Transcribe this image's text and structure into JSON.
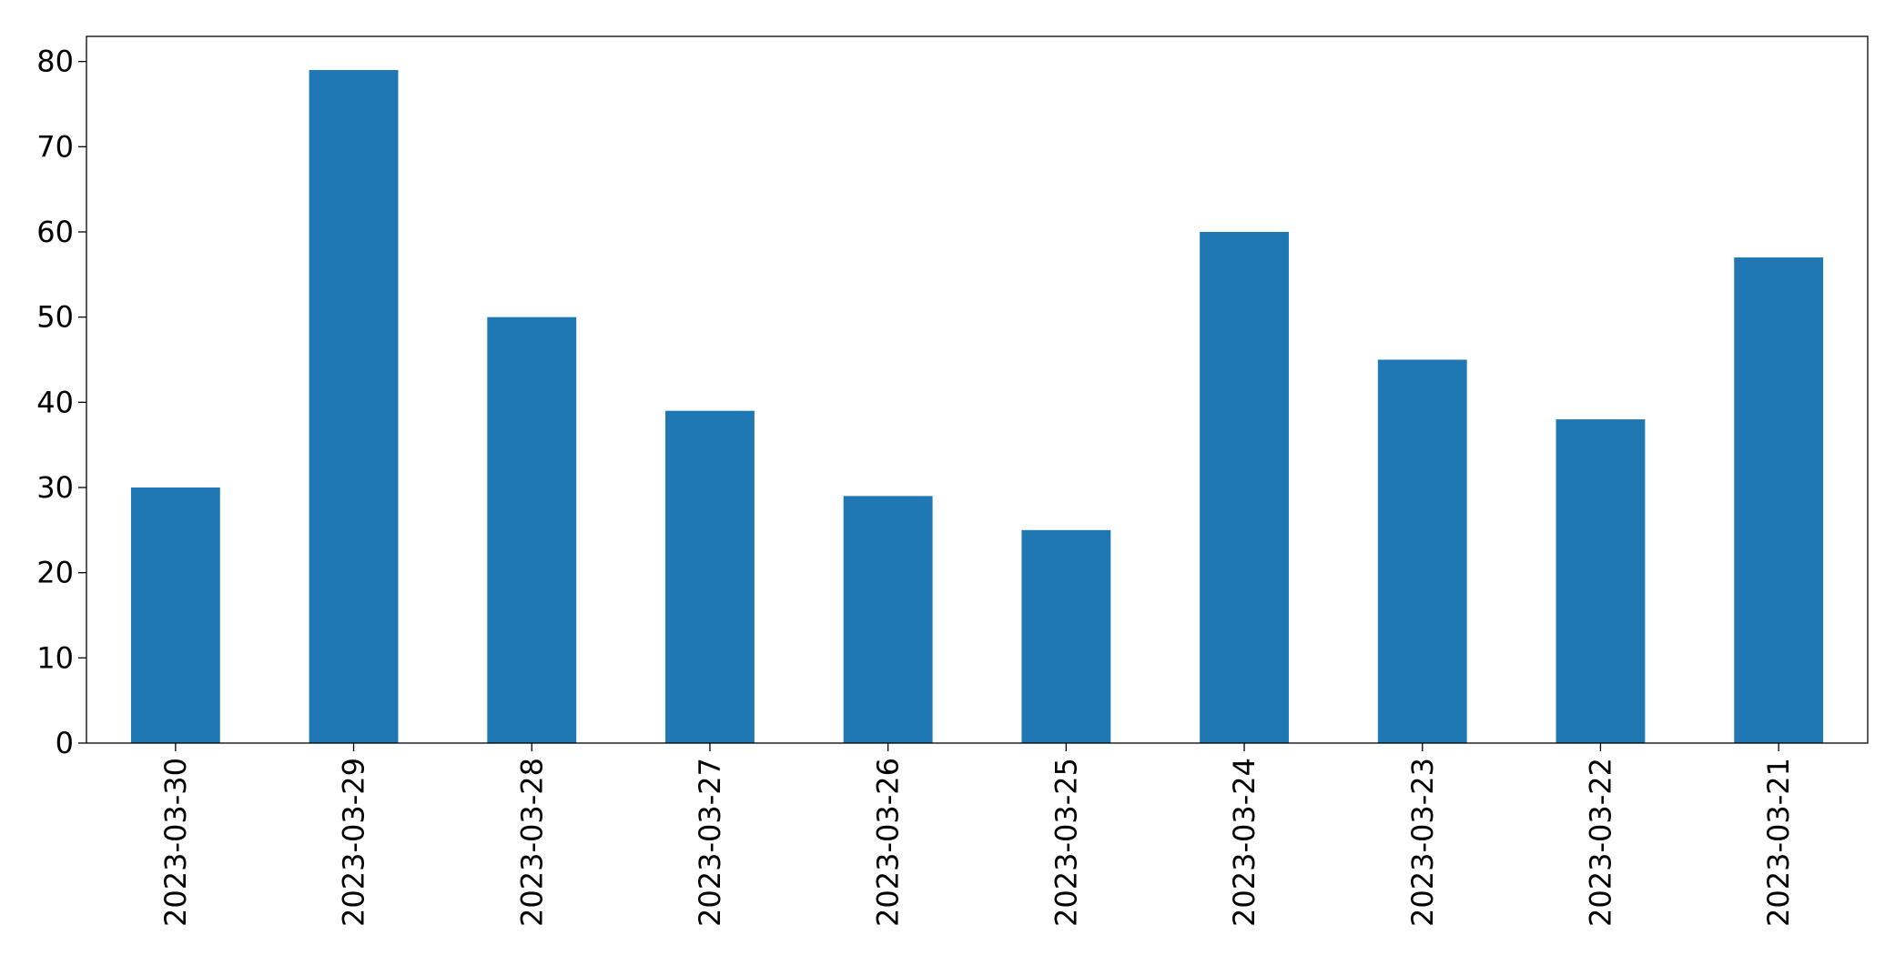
{
  "chart_data": {
    "type": "bar",
    "categories": [
      "2023-03-30",
      "2023-03-29",
      "2023-03-28",
      "2023-03-27",
      "2023-03-26",
      "2023-03-25",
      "2023-03-24",
      "2023-03-23",
      "2023-03-22",
      "2023-03-21"
    ],
    "values": [
      30,
      79,
      50,
      39,
      29,
      25,
      60,
      45,
      38,
      57
    ],
    "color": "#1f77b4",
    "ylim": [
      0,
      82.95
    ],
    "yticks": [
      0,
      10,
      20,
      30,
      40,
      50,
      60,
      70,
      80
    ],
    "grid": false
  }
}
